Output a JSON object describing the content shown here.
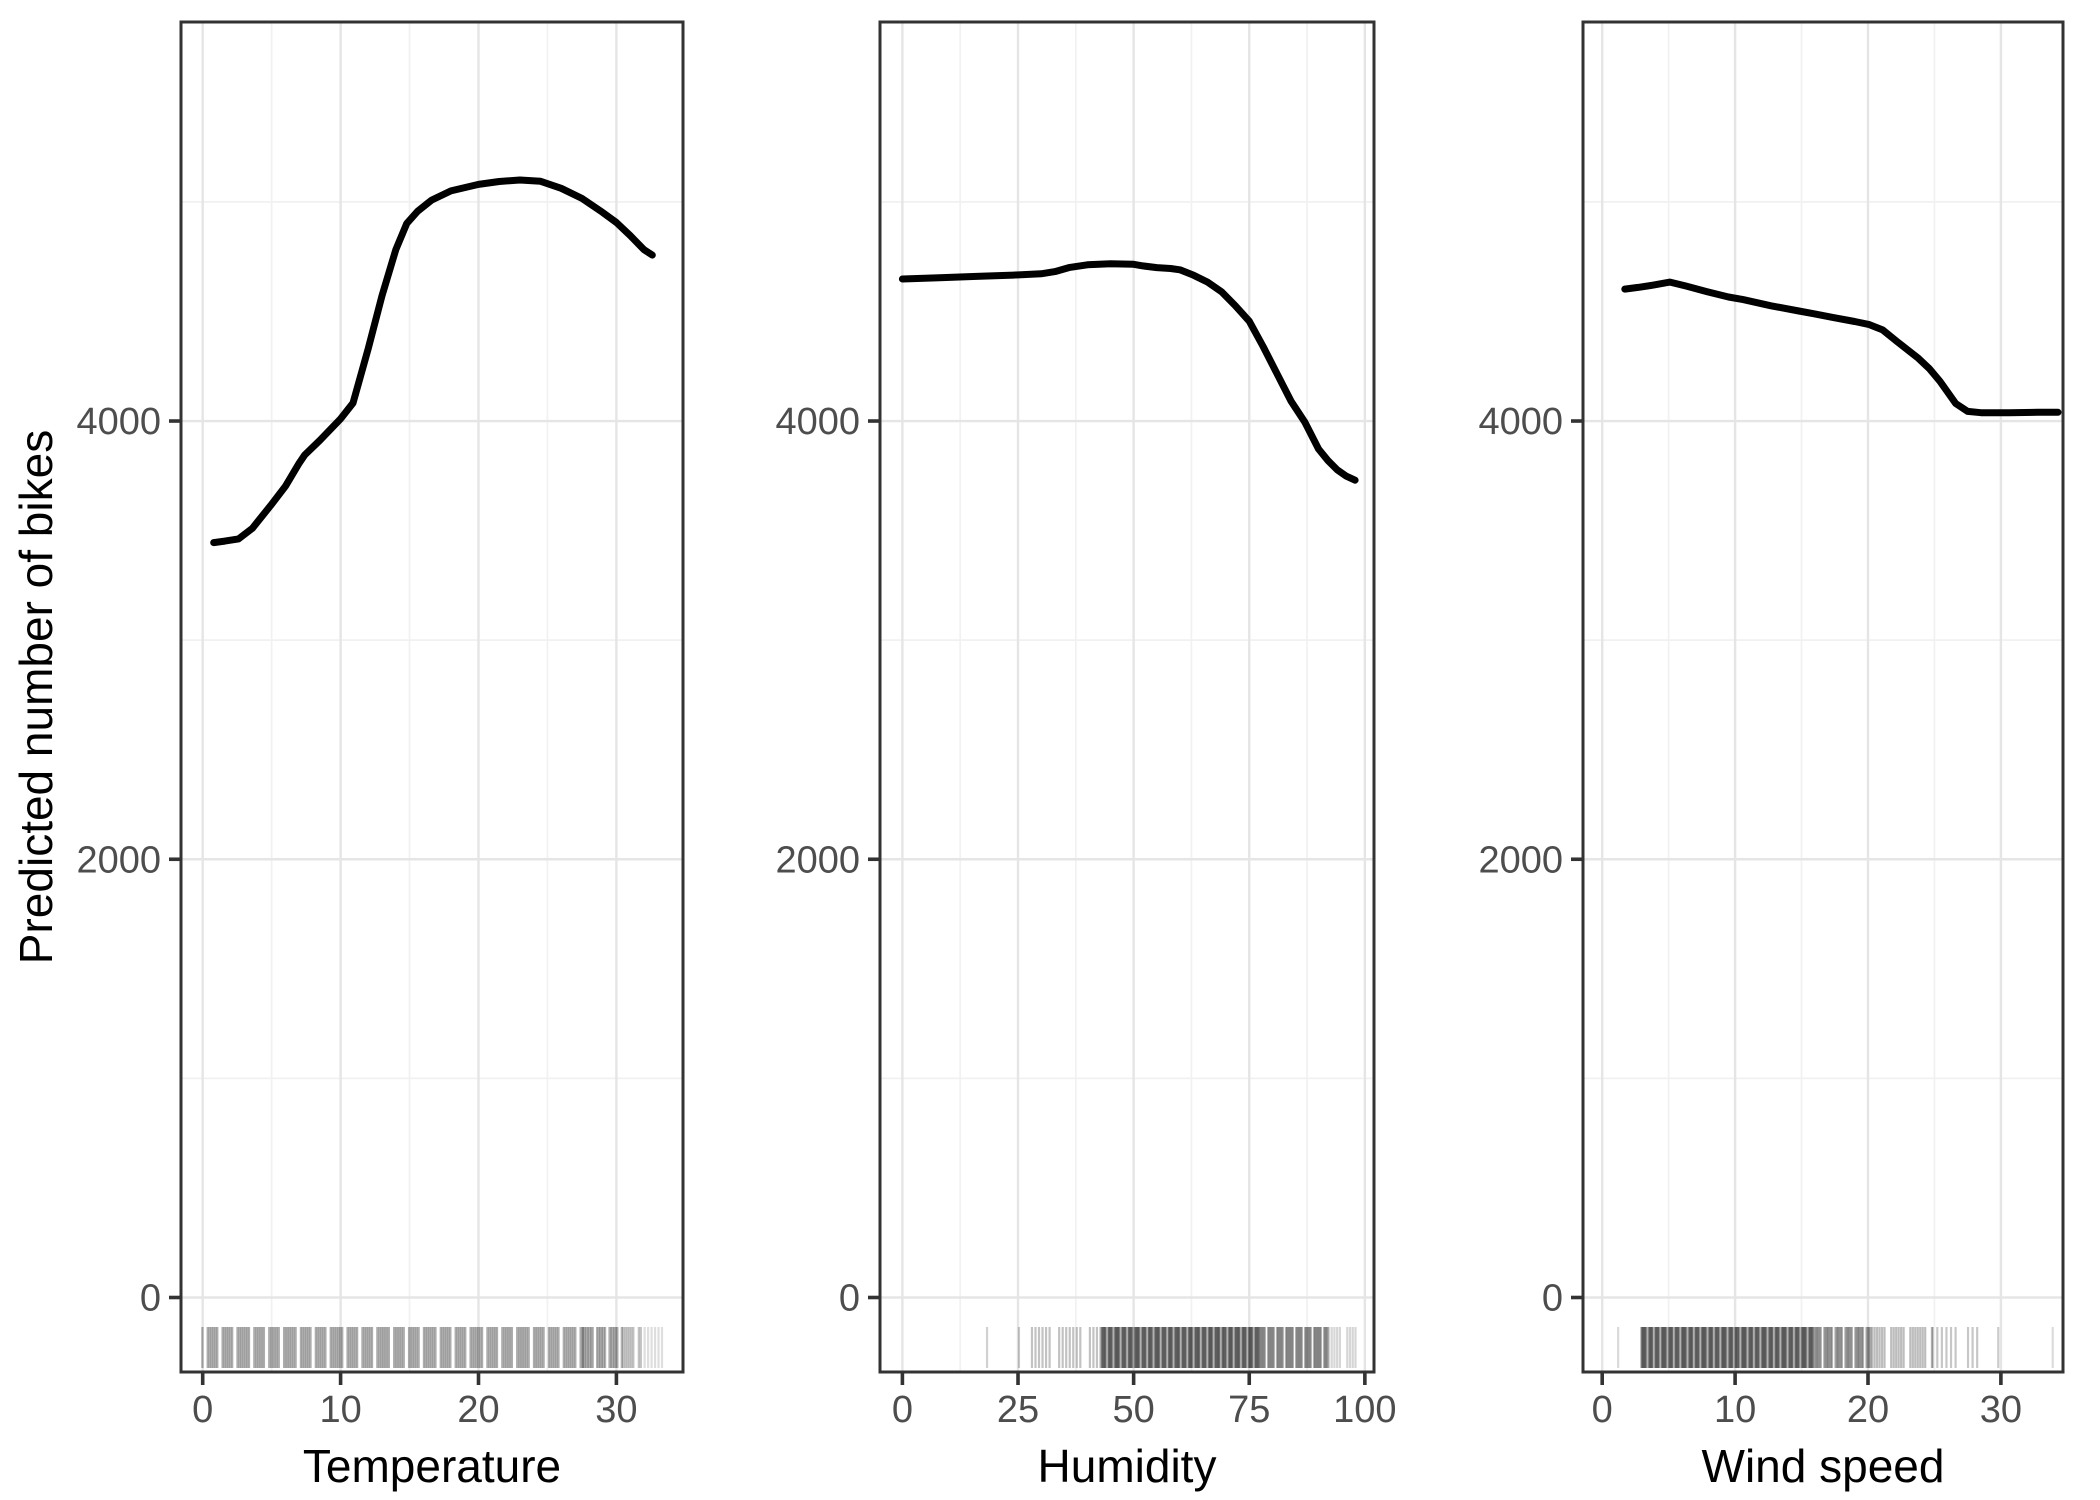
{
  "chart_data": {
    "type": "line",
    "title": "",
    "ylabel": "Predicted number of bikes",
    "y_axis": {
      "tick_values": [
        0,
        2000,
        4000
      ],
      "tick_labels": [
        "0",
        "2000",
        "4000"
      ],
      "minor_tick_values": [
        1000,
        3000,
        5000
      ],
      "domain": [
        -340,
        5821
      ],
      "grid": true
    },
    "panels": [
      {
        "name": "temperature",
        "xlabel": "Temperature",
        "x_tick_values": [
          0,
          10,
          20,
          30
        ],
        "x_tick_labels": [
          "0",
          "10",
          "20",
          "30"
        ],
        "x_minor_tick_values": [
          5,
          15,
          25
        ],
        "x_domain": [
          -1.6,
          34.8
        ],
        "pdp": [
          [
            0.8,
            3445
          ],
          [
            1.6,
            3452
          ],
          [
            2.6,
            3462
          ],
          [
            3.6,
            3510
          ],
          [
            5.0,
            3620
          ],
          [
            6.0,
            3702
          ],
          [
            7.0,
            3808
          ],
          [
            7.4,
            3845
          ],
          [
            8.5,
            3912
          ],
          [
            10.0,
            4010
          ],
          [
            10.9,
            4082
          ],
          [
            12.0,
            4330
          ],
          [
            13.0,
            4572
          ],
          [
            14.0,
            4782
          ],
          [
            14.8,
            4902
          ],
          [
            15.6,
            4958
          ],
          [
            16.6,
            5008
          ],
          [
            18.0,
            5050
          ],
          [
            20.0,
            5080
          ],
          [
            21.5,
            5093
          ],
          [
            23.0,
            5100
          ],
          [
            24.5,
            5094
          ],
          [
            26.0,
            5062
          ],
          [
            27.5,
            5016
          ],
          [
            29.0,
            4952
          ],
          [
            30.0,
            4906
          ],
          [
            31.0,
            4846
          ],
          [
            32.0,
            4782
          ],
          [
            32.6,
            4757
          ]
        ],
        "rug_segments": [
          {
            "from": 0.1,
            "to": 27.5,
            "count": 155,
            "opacity": 0.32
          },
          {
            "from": 27.5,
            "to": 30.3,
            "count": 20,
            "opacity": 0.3
          },
          {
            "from": 30.4,
            "to": 31.7,
            "count": 8,
            "opacity": 0.24
          },
          {
            "from": 31.9,
            "to": 33.5,
            "count": 6,
            "opacity": 0.13
          }
        ]
      },
      {
        "name": "humidity",
        "xlabel": "Humidity",
        "x_tick_values": [
          0,
          25,
          50,
          75,
          100
        ],
        "x_tick_labels": [
          "0",
          "25",
          "50",
          "75",
          "100"
        ],
        "x_minor_tick_values": [
          12.5,
          37.5,
          62.5,
          87.5
        ],
        "x_domain": [
          -4.9,
          101.9
        ],
        "pdp": [
          [
            0,
            4648
          ],
          [
            8,
            4654
          ],
          [
            16,
            4660
          ],
          [
            24,
            4666
          ],
          [
            30,
            4672
          ],
          [
            33,
            4682
          ],
          [
            36,
            4700
          ],
          [
            40,
            4713
          ],
          [
            45,
            4718
          ],
          [
            50,
            4715
          ],
          [
            52,
            4708
          ],
          [
            55,
            4700
          ],
          [
            58,
            4696
          ],
          [
            60,
            4690
          ],
          [
            63,
            4665
          ],
          [
            66,
            4634
          ],
          [
            69,
            4590
          ],
          [
            72,
            4526
          ],
          [
            75,
            4456
          ],
          [
            78,
            4340
          ],
          [
            81,
            4216
          ],
          [
            84,
            4092
          ],
          [
            87,
            3996
          ],
          [
            90,
            3872
          ],
          [
            92,
            3820
          ],
          [
            94,
            3778
          ],
          [
            96,
            3748
          ],
          [
            97.9,
            3730
          ]
        ],
        "rug_segments": [
          {
            "from": 18.3,
            "to": 18.3,
            "count": 1,
            "opacity": 0.18
          },
          {
            "from": 25.2,
            "to": 25.2,
            "count": 1,
            "opacity": 0.2
          },
          {
            "from": 27.5,
            "to": 43,
            "count": 17,
            "opacity": 0.24
          },
          {
            "from": 43,
            "to": 77,
            "count": 150,
            "opacity": 0.33
          },
          {
            "from": 77,
            "to": 92,
            "count": 48,
            "opacity": 0.3
          },
          {
            "from": 92,
            "to": 98,
            "count": 9,
            "opacity": 0.16
          }
        ]
      },
      {
        "name": "wind-speed",
        "xlabel": "Wind speed",
        "x_tick_values": [
          0,
          10,
          20,
          30
        ],
        "x_tick_labels": [
          "0",
          "10",
          "20",
          "30"
        ],
        "x_minor_tick_values": [
          5,
          15,
          25
        ],
        "x_domain": [
          -1.4,
          34.7
        ],
        "pdp": [
          [
            1.7,
            4602
          ],
          [
            2.7,
            4610
          ],
          [
            3.8,
            4620
          ],
          [
            5.1,
            4634
          ],
          [
            6.3,
            4616
          ],
          [
            7.9,
            4590
          ],
          [
            9.5,
            4566
          ],
          [
            10.6,
            4554
          ],
          [
            12.7,
            4526
          ],
          [
            14.8,
            4502
          ],
          [
            15.9,
            4490
          ],
          [
            17.4,
            4472
          ],
          [
            19.0,
            4454
          ],
          [
            20.1,
            4440
          ],
          [
            21.1,
            4416
          ],
          [
            22.2,
            4362
          ],
          [
            23.8,
            4286
          ],
          [
            24.6,
            4240
          ],
          [
            25.4,
            4182
          ],
          [
            26.6,
            4080
          ],
          [
            27.5,
            4044
          ],
          [
            28.5,
            4038
          ],
          [
            30.6,
            4038
          ],
          [
            32.8,
            4040
          ],
          [
            34.3,
            4040
          ]
        ],
        "rug_segments": [
          {
            "from": 1.2,
            "to": 1.2,
            "count": 1,
            "opacity": 0.15
          },
          {
            "from": 2.9,
            "to": 15.9,
            "count": 165,
            "opacity": 0.33
          },
          {
            "from": 15.9,
            "to": 20.2,
            "count": 36,
            "opacity": 0.3
          },
          {
            "from": 20.2,
            "to": 24.7,
            "count": 20,
            "opacity": 0.26
          },
          {
            "from": 24.7,
            "to": 28.2,
            "count": 9,
            "opacity": 0.22
          },
          {
            "from": 29.8,
            "to": 29.8,
            "count": 1,
            "opacity": 0.2
          },
          {
            "from": 33.9,
            "to": 33.9,
            "count": 1,
            "opacity": 0.14
          }
        ]
      }
    ],
    "legend": null,
    "colors": {
      "line": "#000000",
      "panel_border": "#333333",
      "grid_major": "#e5e5e5",
      "grid_minor": "#f1f1f1",
      "tick_label": "#4d4d4d",
      "axis_title": "#000000",
      "background": "#ffffff"
    }
  }
}
